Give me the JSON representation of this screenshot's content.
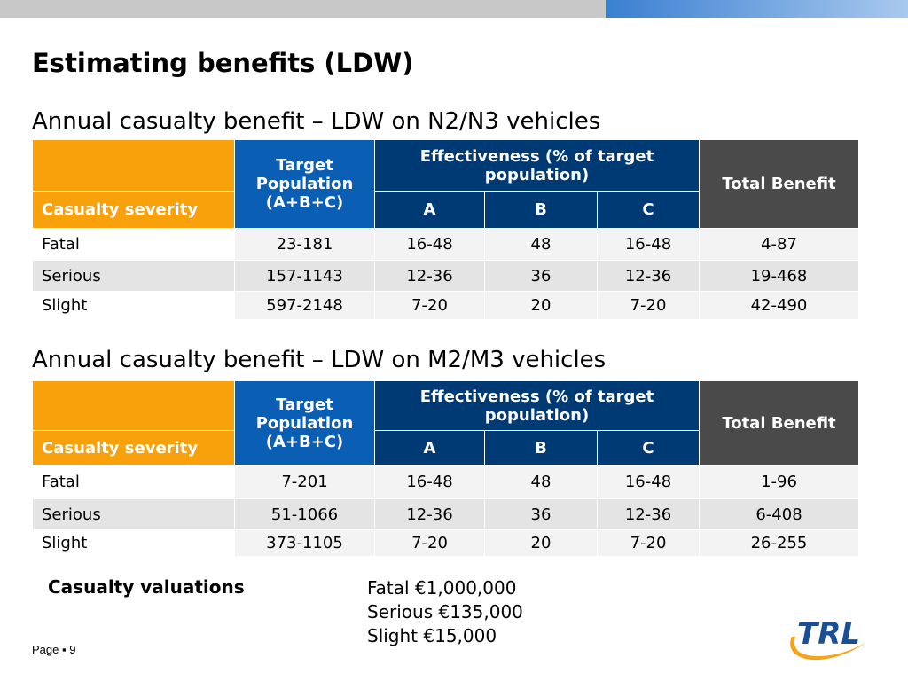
{
  "slide": {
    "title": "Estimating benefits (LDW)",
    "accent_gray": "#c8c8c8",
    "accent_blue": "#3a7fd1"
  },
  "tables": [
    {
      "subtitle": "Annual casualty benefit – LDW on N2/N3 vehicles",
      "headers": {
        "severity": "Casualty severity",
        "target_line1": "Target",
        "target_line2": "Population",
        "target_line3": "(A+B+C)",
        "effectiveness": "Effectiveness (% of target population)",
        "a": "A",
        "b": "B",
        "c": "C",
        "total": "Total Benefit"
      },
      "rows": [
        {
          "severity": "Fatal",
          "target": "23-181",
          "a": "16-48",
          "b": "48",
          "c": "16-48",
          "total": "4-87"
        },
        {
          "severity": "Serious",
          "target": "157-1143",
          "a": "12-36",
          "b": "36",
          "c": "12-36",
          "total": "19-468"
        },
        {
          "severity": "Slight",
          "target": "597-2148",
          "a": "7-20",
          "b": "20",
          "c": "7-20",
          "total": "42-490"
        }
      ]
    },
    {
      "subtitle": "Annual casualty benefit – LDW on M2/M3 vehicles",
      "headers": {
        "severity": "Casualty severity",
        "target_line1": "Target",
        "target_line2": "Population",
        "target_line3": "(A+B+C)",
        "effectiveness": "Effectiveness (% of target population)",
        "a": "A",
        "b": "B",
        "c": "C",
        "total": "Total Benefit"
      },
      "rows": [
        {
          "severity": "Fatal",
          "target": "7-201",
          "a": "16-48",
          "b": "48",
          "c": "16-48",
          "total": "1-96"
        },
        {
          "severity": "Serious",
          "target": "51-1066",
          "a": "12-36",
          "b": "36",
          "c": "12-36",
          "total": "6-408"
        },
        {
          "severity": "Slight",
          "target": "373-1105",
          "a": "7-20",
          "b": "20",
          "c": "7-20",
          "total": "26-255"
        }
      ]
    }
  ],
  "valuations": {
    "label": "Casualty valuations",
    "items": [
      "Fatal €1,000,000",
      "Serious €135,000",
      "Slight €15,000"
    ]
  },
  "footer": {
    "page_label": "Page",
    "separator": "▪",
    "page_number": "9"
  },
  "logo": {
    "icon": "trl-logo-icon",
    "text": "TRL",
    "colors": {
      "blue": "#1a4f96",
      "orange": "#f5a31a"
    }
  }
}
